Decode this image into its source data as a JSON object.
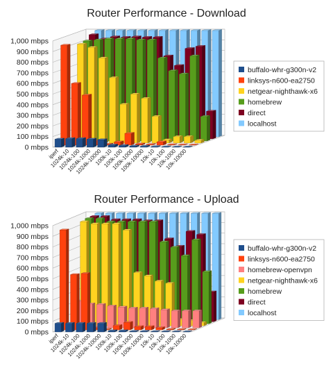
{
  "chart_data": [
    {
      "type": "bar",
      "subtype": "3d-clustered-depth",
      "title": "Router Performance - Download",
      "xlabel": "",
      "ylabel": "",
      "ylim": [
        0,
        1000
      ],
      "y_ticks": [
        0,
        100,
        200,
        300,
        400,
        500,
        600,
        700,
        800,
        900,
        1000
      ],
      "y_tick_labels": [
        "0 mbps",
        "100 mbps",
        "200 mbps",
        "300 mbps",
        "400 mbps",
        "500 mbps",
        "600 mbps",
        "700 mbps",
        "800 mbps",
        "900 mbps",
        "1,000 mbps"
      ],
      "grid": true,
      "legend_position": "right",
      "categories": [
        "iperf",
        "1024k-10",
        "1024k-100",
        "1024k-1000",
        "1024k-10000",
        "100k-10",
        "100k-100",
        "100k-1000",
        "100k-10000",
        "10k-10",
        "10k-100",
        "10k-1000",
        "10k-10000"
      ],
      "series": [
        {
          "name": "buffalo-whr-g300n-v2",
          "color": "#1f4e8c",
          "values": [
            75,
            80,
            80,
            75,
            70,
            20,
            15,
            10,
            8,
            5,
            3,
            2,
            1
          ]
        },
        {
          "name": "linksys-n600-ea2750",
          "color": "#ff420e",
          "values": [
            940,
            580,
            470,
            40,
            8,
            30,
            110,
            10,
            5,
            30,
            3,
            2,
            1
          ]
        },
        {
          "name": "netgear-nighthawk-x6",
          "color": "#ffd320",
          "values": [
            0,
            930,
            900,
            800,
            615,
            365,
            460,
            420,
            250,
            30,
            60,
            60,
            25
          ]
        },
        {
          "name": "homebrew",
          "color": "#579d1c",
          "values": [
            0,
            940,
            950,
            960,
            960,
            960,
            950,
            950,
            780,
            660,
            630,
            800,
            230
          ]
        },
        {
          "name": "direct",
          "color": "#7e0021",
          "values": [
            0,
            980,
            940,
            960,
            955,
            960,
            955,
            955,
            780,
            690,
            850,
            870,
            260
          ]
        },
        {
          "name": "localhost",
          "color": "#83caff",
          "values": [
            0,
            1000,
            1000,
            1000,
            1000,
            1000,
            1000,
            1000,
            1000,
            1000,
            1000,
            1000,
            1000
          ]
        }
      ]
    },
    {
      "type": "bar",
      "subtype": "3d-clustered-depth",
      "title": "Router Performance - Upload",
      "xlabel": "",
      "ylabel": "",
      "ylim": [
        0,
        1000
      ],
      "y_ticks": [
        0,
        100,
        200,
        300,
        400,
        500,
        600,
        700,
        800,
        900,
        1000
      ],
      "y_tick_labels": [
        "0 mbps",
        "100 mbps",
        "200 mbps",
        "300 mbps",
        "400 mbps",
        "500 mbps",
        "600 mbps",
        "700 mbps",
        "800 mbps",
        "900 mbps",
        "1,000 mbps"
      ],
      "grid": true,
      "legend_position": "right",
      "categories": [
        "iperf",
        "1024k-10",
        "1024k-100",
        "1024k-1000",
        "1024k-10000",
        "100k-10",
        "100k-100",
        "100k-1000",
        "100k-10000",
        "10k-10",
        "10k-100",
        "10k-1000",
        "10k-10000"
      ],
      "series": [
        {
          "name": "buffalo-whr-g300n-v2",
          "color": "#1f4e8c",
          "values": [
            80,
            80,
            80,
            80,
            80,
            10,
            10,
            5,
            5,
            3,
            3,
            2,
            1
          ]
        },
        {
          "name": "linksys-n600-ea2750",
          "color": "#ff420e",
          "values": [
            940,
            520,
            530,
            20,
            5,
            40,
            70,
            30,
            30,
            20,
            5,
            3,
            2
          ]
        },
        {
          "name": "homebrew-openvpn",
          "color": "#ff8080",
          "values": [
            0,
            250,
            225,
            220,
            205,
            195,
            185,
            185,
            180,
            170,
            160,
            160,
            160
          ]
        },
        {
          "name": "netgear-nighthawk-x6",
          "color": "#ffd320",
          "values": [
            0,
            980,
            960,
            960,
            960,
            900,
            500,
            470,
            420,
            400,
            60,
            50,
            30
          ]
        },
        {
          "name": "homebrew",
          "color": "#579d1c",
          "values": [
            0,
            990,
            990,
            960,
            960,
            960,
            960,
            960,
            770,
            720,
            640,
            790,
            490
          ]
        },
        {
          "name": "direct",
          "color": "#7e0021",
          "values": [
            0,
            990,
            990,
            960,
            960,
            960,
            950,
            950,
            780,
            710,
            850,
            820,
            280
          ]
        },
        {
          "name": "localhost",
          "color": "#83caff",
          "values": [
            0,
            1000,
            1000,
            1000,
            1000,
            1000,
            1000,
            1000,
            1000,
            1000,
            1000,
            1000,
            1000
          ]
        }
      ]
    }
  ]
}
